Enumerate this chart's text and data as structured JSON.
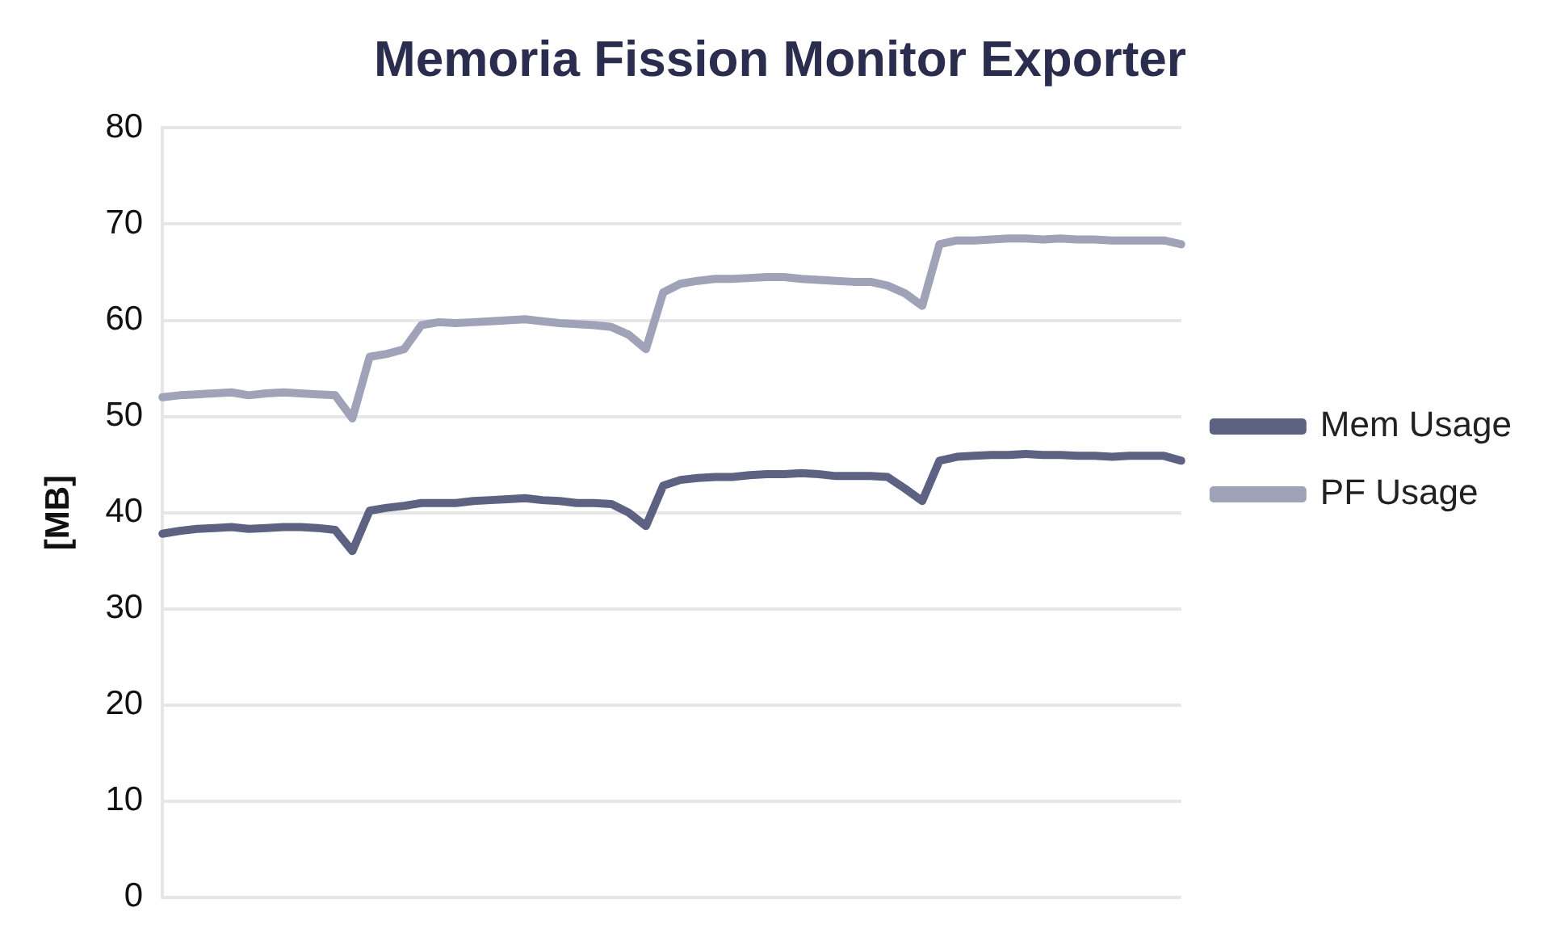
{
  "chart_data": {
    "type": "line",
    "title": "Memoria Fission Monitor Exporter",
    "ylabel": "[MB]",
    "categories": [
      null,
      null,
      null,
      null,
      null,
      null,
      null,
      null,
      null,
      null,
      null,
      null,
      null,
      null,
      null,
      null,
      null,
      null,
      null,
      null,
      null,
      null,
      null,
      null,
      null,
      null,
      null,
      null,
      null,
      null,
      null,
      null,
      null,
      null,
      null,
      null,
      null,
      null,
      null,
      null,
      null,
      null,
      null,
      null,
      null,
      null,
      null,
      null,
      null,
      null,
      null,
      null,
      null,
      null,
      null,
      null,
      null,
      null,
      null,
      null
    ],
    "series": [
      {
        "name": "Mem Usage",
        "color": "#5d6283",
        "values": [
          37.8,
          38.1,
          38.3,
          38.4,
          38.5,
          38.3,
          38.4,
          38.5,
          38.5,
          38.4,
          38.2,
          36.0,
          40.2,
          40.5,
          40.7,
          41.0,
          41.0,
          41.0,
          41.2,
          41.3,
          41.4,
          41.5,
          41.3,
          41.2,
          41.0,
          41.0,
          40.9,
          40.0,
          38.6,
          42.8,
          43.4,
          43.6,
          43.7,
          43.7,
          43.9,
          44.0,
          44.0,
          44.1,
          44.0,
          43.8,
          43.8,
          43.8,
          43.7,
          42.5,
          41.2,
          45.4,
          45.8,
          45.9,
          46.0,
          46.0,
          46.1,
          46.0,
          46.0,
          45.9,
          45.9,
          45.8,
          45.9,
          45.9,
          45.9,
          45.4
        ]
      },
      {
        "name": "PF Usage",
        "color": "#a0a2b8",
        "values": [
          52.0,
          52.2,
          52.3,
          52.4,
          52.5,
          52.2,
          52.4,
          52.5,
          52.4,
          52.3,
          52.2,
          49.8,
          56.2,
          56.5,
          57.0,
          59.5,
          59.8,
          59.7,
          59.8,
          59.9,
          60.0,
          60.1,
          59.9,
          59.7,
          59.6,
          59.5,
          59.3,
          58.5,
          57.0,
          62.9,
          63.8,
          64.1,
          64.3,
          64.3,
          64.4,
          64.5,
          64.5,
          64.3,
          64.2,
          64.1,
          64.0,
          64.0,
          63.6,
          62.8,
          61.5,
          67.9,
          68.3,
          68.3,
          68.4,
          68.5,
          68.5,
          68.4,
          68.5,
          68.4,
          68.4,
          68.3,
          68.3,
          68.3,
          68.3,
          67.9
        ]
      }
    ],
    "ylim": [
      0,
      80
    ],
    "yticks": [
      0,
      10,
      20,
      30,
      40,
      50,
      60,
      70,
      80
    ],
    "grid": "y",
    "legend": "right",
    "tick_labels": "y",
    "marker": "none",
    "line_style": "solid"
  }
}
